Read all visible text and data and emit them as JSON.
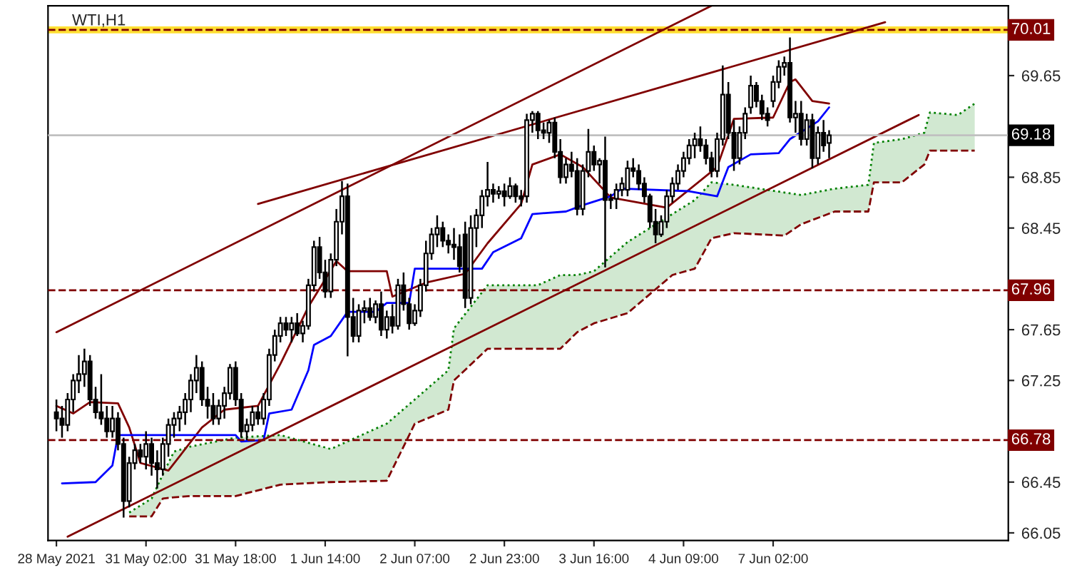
{
  "chart_data": {
    "type": "candlestick",
    "title": "WTI,H1",
    "categories": [
      "28 May 2021",
      null,
      null,
      null,
      null,
      null,
      null,
      null,
      null,
      null,
      null,
      null,
      null,
      null,
      null,
      null,
      "31 May 02:00",
      null,
      null,
      null,
      null,
      null,
      null,
      null,
      null,
      null,
      null,
      null,
      null,
      null,
      null,
      null,
      "31 May 18:00",
      null,
      null,
      null,
      null,
      null,
      null,
      null,
      null,
      null,
      null,
      null,
      null,
      null,
      null,
      null,
      "1 Jun 14:00",
      null,
      null,
      null,
      null,
      null,
      null,
      null,
      null,
      null,
      null,
      null,
      null,
      null,
      null,
      null,
      "2 Jun 07:00",
      null,
      null,
      null,
      null,
      null,
      null,
      null,
      null,
      null,
      null,
      null,
      null,
      null,
      null,
      null,
      "2 Jun 23:00",
      null,
      null,
      null,
      null,
      null,
      null,
      null,
      null,
      null,
      null,
      null,
      null,
      null,
      null,
      null,
      "3 Jun 16:00",
      null,
      null,
      null,
      null,
      null,
      null,
      null,
      null,
      null,
      null,
      null,
      null,
      null,
      null,
      null,
      "4 Jun 09:00",
      null,
      null,
      null,
      null,
      null,
      null,
      null,
      null,
      null,
      null,
      null,
      null,
      null,
      null,
      null,
      "7 Jun 02:00",
      null,
      null,
      null,
      null,
      null,
      null,
      null,
      null,
      null,
      null,
      null,
      null,
      null,
      null,
      null,
      null,
      null,
      null,
      null,
      null,
      null,
      null,
      null,
      null,
      null,
      null,
      null,
      null,
      null,
      null,
      null,
      null,
      null,
      null,
      null,
      null
    ],
    "ohlc": [
      [
        67.0,
        67.1,
        66.85,
        66.95
      ],
      [
        66.95,
        67.05,
        66.8,
        66.9
      ],
      [
        66.9,
        67.15,
        66.85,
        67.1
      ],
      [
        67.1,
        67.3,
        67.0,
        67.25
      ],
      [
        67.25,
        67.45,
        67.15,
        67.3
      ],
      [
        67.3,
        67.5,
        67.2,
        67.4
      ],
      [
        67.4,
        67.45,
        67.05,
        67.1
      ],
      [
        67.1,
        67.2,
        66.95,
        67.0
      ],
      [
        67.0,
        67.3,
        66.9,
        66.95
      ],
      [
        66.95,
        67.05,
        66.8,
        66.85
      ],
      [
        66.85,
        67.05,
        66.8,
        66.95
      ],
      [
        66.95,
        67.0,
        66.7,
        66.75
      ],
      [
        66.75,
        66.8,
        66.17,
        66.3
      ],
      [
        66.3,
        66.65,
        66.25,
        66.6
      ],
      [
        66.6,
        66.75,
        66.55,
        66.7
      ],
      [
        66.7,
        66.75,
        66.6,
        66.65
      ],
      [
        66.65,
        66.85,
        66.55,
        66.75
      ],
      [
        66.75,
        66.8,
        66.5,
        66.6
      ],
      [
        66.6,
        66.7,
        66.4,
        66.55
      ],
      [
        66.55,
        66.8,
        66.5,
        66.75
      ],
      [
        66.75,
        66.95,
        66.65,
        66.9
      ],
      [
        66.9,
        67.0,
        66.8,
        66.95
      ],
      [
        66.95,
        67.05,
        66.85,
        67.0
      ],
      [
        67.0,
        67.15,
        66.9,
        67.1
      ],
      [
        67.1,
        67.3,
        67.0,
        67.25
      ],
      [
        67.25,
        67.45,
        67.15,
        67.35
      ],
      [
        67.35,
        67.4,
        67.05,
        67.1
      ],
      [
        67.1,
        67.2,
        66.95,
        67.05
      ],
      [
        67.05,
        67.15,
        66.9,
        66.95
      ],
      [
        66.95,
        67.1,
        66.9,
        67.05
      ],
      [
        67.05,
        67.2,
        66.95,
        67.15
      ],
      [
        67.15,
        67.38,
        67.1,
        67.35
      ],
      [
        67.35,
        67.4,
        67.05,
        67.1
      ],
      [
        67.1,
        67.15,
        66.8,
        66.85
      ],
      [
        66.85,
        66.95,
        66.78,
        66.9
      ],
      [
        66.9,
        67.05,
        66.85,
        67.0
      ],
      [
        67.0,
        67.05,
        66.9,
        66.95
      ],
      [
        66.95,
        67.15,
        66.9,
        67.1
      ],
      [
        67.1,
        67.5,
        67.05,
        67.45
      ],
      [
        67.45,
        67.65,
        67.4,
        67.6
      ],
      [
        67.6,
        67.75,
        67.55,
        67.7
      ],
      [
        67.7,
        67.75,
        67.6,
        67.65
      ],
      [
        67.65,
        67.75,
        67.55,
        67.7
      ],
      [
        67.7,
        67.78,
        67.6,
        67.62
      ],
      [
        67.62,
        67.72,
        67.55,
        67.68
      ],
      [
        67.68,
        68.05,
        67.65,
        68.0
      ],
      [
        68.0,
        68.35,
        67.95,
        68.3
      ],
      [
        68.3,
        68.38,
        68.05,
        68.1
      ],
      [
        68.1,
        68.2,
        67.9,
        67.95
      ],
      [
        67.95,
        68.25,
        67.9,
        68.2
      ],
      [
        68.2,
        68.6,
        68.15,
        68.5
      ],
      [
        68.5,
        68.82,
        68.4,
        68.7
      ],
      [
        68.7,
        68.8,
        67.44,
        67.75
      ],
      [
        67.75,
        67.9,
        67.55,
        67.6
      ],
      [
        67.6,
        67.85,
        67.55,
        67.8
      ],
      [
        67.8,
        67.88,
        67.7,
        67.82
      ],
      [
        67.82,
        67.9,
        67.72,
        67.75
      ],
      [
        67.75,
        67.88,
        67.7,
        67.85
      ],
      [
        67.85,
        67.95,
        67.6,
        67.65
      ],
      [
        67.65,
        67.8,
        67.58,
        67.75
      ],
      [
        67.75,
        67.85,
        67.62,
        67.68
      ],
      [
        67.68,
        68.05,
        67.65,
        68.0
      ],
      [
        68.0,
        68.1,
        67.8,
        67.85
      ],
      [
        67.85,
        67.9,
        67.65,
        67.7
      ],
      [
        67.7,
        67.85,
        67.68,
        67.8
      ],
      [
        67.8,
        68.05,
        67.75,
        68.0
      ],
      [
        68.0,
        68.35,
        67.95,
        68.25
      ],
      [
        68.25,
        68.45,
        68.2,
        68.4
      ],
      [
        68.4,
        68.55,
        68.3,
        68.45
      ],
      [
        68.45,
        68.5,
        68.3,
        68.35
      ],
      [
        68.35,
        68.4,
        68.25,
        68.32
      ],
      [
        68.32,
        68.45,
        68.2,
        68.3
      ],
      [
        68.3,
        68.4,
        68.1,
        68.15
      ],
      [
        68.4,
        68.5,
        67.82,
        67.9
      ],
      [
        67.9,
        68.55,
        67.85,
        68.45
      ],
      [
        68.45,
        68.6,
        68.3,
        68.55
      ],
      [
        68.55,
        68.75,
        68.45,
        68.7
      ],
      [
        68.7,
        68.97,
        68.62,
        68.75
      ],
      [
        68.75,
        68.8,
        68.65,
        68.72
      ],
      [
        68.72,
        68.78,
        68.68,
        68.74
      ],
      [
        68.74,
        68.8,
        68.62,
        68.7
      ],
      [
        68.7,
        68.85,
        68.68,
        68.78
      ],
      [
        68.78,
        68.8,
        68.65,
        68.7
      ],
      [
        68.7,
        68.75,
        68.62,
        68.68
      ],
      [
        68.7,
        69.35,
        68.65,
        69.3
      ],
      [
        69.3,
        69.37,
        69.2,
        69.35
      ],
      [
        69.35,
        69.37,
        69.15,
        69.22
      ],
      [
        69.22,
        69.28,
        69.15,
        69.2
      ],
      [
        69.2,
        69.3,
        69.12,
        69.28
      ],
      [
        69.28,
        69.32,
        69.0,
        69.05
      ],
      [
        69.05,
        69.15,
        68.8,
        68.85
      ],
      [
        68.85,
        69.0,
        68.8,
        68.95
      ],
      [
        68.95,
        69.05,
        68.85,
        68.9
      ],
      [
        68.9,
        69.0,
        68.55,
        68.6
      ],
      [
        68.6,
        68.95,
        68.55,
        68.9
      ],
      [
        68.9,
        69.23,
        68.85,
        69.05
      ],
      [
        69.05,
        69.1,
        68.9,
        68.95
      ],
      [
        68.95,
        69.0,
        68.8,
        68.98
      ],
      [
        68.98,
        69.17,
        68.14,
        68.67
      ],
      [
        68.67,
        68.72,
        68.6,
        68.68
      ],
      [
        68.68,
        68.8,
        68.6,
        68.75
      ],
      [
        68.75,
        68.85,
        68.7,
        68.8
      ],
      [
        68.75,
        68.98,
        68.7,
        68.92
      ],
      [
        68.92,
        69.0,
        68.85,
        68.9
      ],
      [
        68.9,
        68.95,
        68.75,
        68.8
      ],
      [
        68.8,
        68.85,
        68.65,
        68.7
      ],
      [
        68.7,
        68.72,
        68.45,
        68.5
      ],
      [
        68.5,
        68.6,
        68.33,
        68.4
      ],
      [
        68.4,
        68.55,
        68.38,
        68.5
      ],
      [
        68.5,
        68.75,
        68.45,
        68.7
      ],
      [
        68.7,
        68.85,
        68.65,
        68.8
      ],
      [
        68.8,
        68.95,
        68.75,
        68.9
      ],
      [
        68.9,
        69.05,
        68.85,
        69.0
      ],
      [
        69.0,
        69.15,
        68.95,
        69.1
      ],
      [
        69.1,
        69.2,
        69.0,
        69.15
      ],
      [
        69.15,
        69.25,
        69.05,
        69.1
      ],
      [
        69.1,
        69.15,
        68.95,
        69.0
      ],
      [
        69.0,
        69.05,
        68.85,
        68.9
      ],
      [
        68.9,
        69.2,
        68.85,
        69.15
      ],
      [
        69.15,
        69.73,
        69.1,
        69.5
      ],
      [
        69.5,
        69.6,
        69.15,
        69.2
      ],
      [
        69.2,
        69.3,
        68.9,
        69.0
      ],
      [
        69.0,
        69.25,
        68.95,
        69.2
      ],
      [
        69.2,
        69.4,
        69.15,
        69.35
      ],
      [
        69.4,
        69.65,
        69.35,
        69.57
      ],
      [
        69.57,
        69.6,
        69.4,
        69.45
      ],
      [
        69.45,
        69.5,
        69.3,
        69.35
      ],
      [
        69.35,
        69.4,
        69.25,
        69.3
      ],
      [
        69.45,
        69.65,
        69.4,
        69.6
      ],
      [
        69.6,
        69.77,
        69.55,
        69.72
      ],
      [
        69.72,
        69.8,
        69.65,
        69.75
      ],
      [
        69.75,
        69.95,
        69.28,
        69.32
      ],
      [
        69.32,
        69.45,
        69.2,
        69.35
      ],
      [
        69.35,
        69.45,
        69.1,
        69.15
      ],
      [
        69.15,
        69.35,
        69.1,
        69.3
      ],
      [
        69.3,
        69.35,
        68.92,
        69.0
      ],
      [
        69.0,
        69.25,
        68.95,
        69.2
      ],
      [
        69.2,
        69.3,
        69.05,
        69.1
      ],
      [
        69.12,
        69.22,
        69.0,
        69.18
      ],
      null,
      null,
      null,
      null,
      null,
      null,
      null,
      null,
      null,
      null,
      null,
      null,
      null,
      null,
      null,
      null,
      null,
      null,
      null,
      null,
      null,
      null,
      null,
      null,
      null,
      null
    ],
    "series": [
      {
        "type": "area",
        "color": "#008000",
        "values": [
          null,
          null,
          null,
          null,
          null,
          null,
          null,
          null,
          null,
          null,
          null,
          null,
          null,
          66.21,
          null,
          null,
          null,
          66.32,
          null,
          66.51,
          null,
          66.69,
          null,
          null,
          66.73,
          null,
          null,
          null,
          null,
          null,
          null,
          null,
          66.8,
          null,
          null,
          null,
          null,
          null,
          null,
          null,
          66.82,
          null,
          null,
          null,
          null,
          null,
          null,
          null,
          null,
          66.71,
          null,
          null,
          null,
          null,
          null,
          null,
          null,
          null,
          null,
          66.91,
          null,
          null,
          null,
          null,
          67.1,
          null,
          null,
          null,
          null,
          null,
          67.33,
          67.66,
          null,
          null,
          null,
          null,
          null,
          68.0,
          null,
          null,
          null,
          null,
          null,
          null,
          null,
          null,
          68.0,
          null,
          null,
          null,
          68.08,
          null,
          null,
          68.08,
          null,
          null,
          68.11,
          null,
          null,
          null,
          null,
          null,
          68.34,
          null,
          null,
          null,
          null,
          null,
          null,
          null,
          68.56,
          null,
          null,
          null,
          68.67,
          null,
          null,
          68.81,
          null,
          null,
          null,
          68.79,
          null,
          null,
          null,
          null,
          null,
          null,
          null,
          null,
          68.73,
          null,
          null,
          68.71,
          null,
          null,
          null,
          null,
          null,
          68.76,
          null,
          null,
          null,
          null,
          null,
          68.79,
          69.12,
          null,
          null,
          null,
          null,
          69.15,
          null,
          null,
          null,
          69.2,
          69.36,
          null,
          null,
          null,
          null,
          69.34,
          null,
          null,
          69.43
        ]
      },
      {
        "type": "line",
        "color": "#800000",
        "values": [
          67.05,
          null,
          null,
          66.99,
          null,
          null,
          67.08,
          null,
          null,
          null,
          null,
          67.07,
          null,
          66.88,
          null,
          66.6,
          null,
          null,
          null,
          null,
          66.54,
          null,
          null,
          66.71,
          null,
          null,
          66.88,
          null,
          null,
          null,
          67.02,
          null,
          null,
          null,
          null,
          null,
          67.05,
          null,
          null,
          null,
          67.38,
          null,
          null,
          null,
          null,
          67.83,
          null,
          null,
          null,
          null,
          68.19,
          null,
          68.11,
          null,
          null,
          null,
          null,
          null,
          null,
          68.11,
          67.91,
          null,
          null,
          null,
          null,
          null,
          68.02,
          null,
          null,
          null,
          null,
          null,
          null,
          68.09,
          null,
          null,
          null,
          68.33,
          null,
          null,
          null,
          null,
          null,
          68.64,
          null,
          68.95,
          null,
          null,
          null,
          null,
          69.03,
          null,
          null,
          null,
          68.93,
          null,
          null,
          null,
          null,
          68.69,
          null,
          null,
          null,
          null,
          null,
          null,
          null,
          null,
          null,
          68.61,
          null,
          null,
          null,
          null,
          null,
          null,
          null,
          null,
          68.93,
          null,
          null,
          69.31,
          null,
          null,
          null,
          null,
          null,
          null,
          69.32,
          null,
          null,
          69.6,
          69.62,
          null,
          null,
          69.45,
          null,
          null,
          69.43,
          null,
          null,
          null,
          null,
          null,
          null,
          null,
          null,
          null,
          null,
          null,
          null,
          null,
          null,
          null,
          null,
          null,
          null,
          null,
          null,
          null,
          null,
          null,
          null,
          null,
          null
        ]
      },
      {
        "type": "line",
        "color": "#800000",
        "line_style": "dashed",
        "values": [
          null,
          null,
          null,
          null,
          null,
          null,
          null,
          null,
          null,
          null,
          null,
          null,
          null,
          66.18,
          null,
          null,
          null,
          66.18,
          null,
          66.32,
          null,
          66.33,
          null,
          null,
          66.34,
          null,
          null,
          null,
          null,
          null,
          null,
          null,
          66.34,
          null,
          null,
          null,
          null,
          null,
          null,
          null,
          66.43,
          null,
          null,
          null,
          null,
          null,
          null,
          null,
          null,
          66.45,
          null,
          null,
          null,
          null,
          null,
          null,
          null,
          null,
          null,
          66.46,
          null,
          null,
          null,
          null,
          66.91,
          null,
          null,
          null,
          null,
          null,
          67.02,
          67.25,
          null,
          null,
          null,
          null,
          null,
          67.5,
          null,
          null,
          null,
          null,
          null,
          null,
          null,
          null,
          67.5,
          null,
          null,
          null,
          67.5,
          null,
          null,
          67.63,
          null,
          null,
          67.7,
          null,
          null,
          null,
          null,
          null,
          67.78,
          null,
          null,
          null,
          null,
          null,
          null,
          null,
          68.08,
          null,
          null,
          null,
          68.13,
          null,
          null,
          68.37,
          null,
          null,
          null,
          68.41,
          null,
          null,
          null,
          null,
          null,
          null,
          null,
          null,
          68.39,
          null,
          null,
          68.48,
          null,
          null,
          null,
          null,
          null,
          68.58,
          null,
          null,
          null,
          null,
          null,
          68.58,
          68.81,
          null,
          null,
          null,
          null,
          68.81,
          null,
          null,
          null,
          68.95,
          69.06,
          null,
          null,
          null,
          null,
          69.06,
          null,
          null,
          69.06
        ]
      },
      {
        "type": "line",
        "color": "#0000ff",
        "values": [
          null,
          66.44,
          null,
          null,
          null,
          null,
          null,
          66.45,
          null,
          null,
          66.58,
          66.82,
          null,
          null,
          null,
          null,
          null,
          null,
          null,
          null,
          null,
          null,
          null,
          null,
          null,
          null,
          null,
          null,
          null,
          null,
          null,
          null,
          66.82,
          66.77,
          null,
          null,
          null,
          66.78,
          66.99,
          null,
          null,
          null,
          67.02,
          null,
          null,
          67.33,
          67.53,
          null,
          null,
          67.6,
          null,
          null,
          67.79,
          null,
          null,
          null,
          null,
          67.79,
          null,
          67.86,
          null,
          null,
          null,
          67.86,
          68.13,
          null,
          null,
          null,
          null,
          null,
          null,
          null,
          null,
          null,
          null,
          null,
          68.13,
          null,
          68.26,
          null,
          null,
          null,
          null,
          68.37,
          null,
          68.56,
          null,
          null,
          null,
          null,
          null,
          68.58,
          null,
          null,
          68.63,
          null,
          null,
          null,
          null,
          68.7,
          null,
          68.76,
          null,
          null,
          null,
          null,
          null,
          null,
          null,
          null,
          null,
          null,
          null,
          68.74,
          null,
          null,
          null,
          null,
          68.7,
          null,
          68.93,
          null,
          null,
          null,
          69.03,
          null,
          null,
          null,
          null,
          69.04,
          null,
          69.15,
          null,
          null,
          null,
          null,
          69.29,
          null,
          69.4,
          null,
          null,
          null,
          null,
          null,
          null,
          null,
          null,
          null,
          null,
          null,
          null,
          null,
          null,
          null,
          null,
          null,
          null,
          null,
          null,
          null,
          null,
          null,
          null,
          null,
          null
        ]
      },
      {
        "type": "line",
        "color": "#800000",
        "values": [
          67.63,
          null,
          null,
          null,
          null,
          null,
          null,
          null,
          null,
          null,
          null,
          null,
          null,
          null,
          null,
          null,
          null,
          null,
          null,
          null,
          null,
          null,
          null,
          null,
          null,
          null,
          null,
          null,
          null,
          null,
          null,
          null,
          null,
          null,
          null,
          null,
          null,
          null,
          null,
          null,
          null,
          null,
          null,
          null,
          null,
          null,
          null,
          null,
          null,
          null,
          null,
          null,
          null,
          null,
          null,
          null,
          null,
          null,
          null,
          null,
          null,
          null,
          null,
          null,
          null,
          null,
          null,
          null,
          null,
          null,
          null,
          null,
          null,
          null,
          null,
          null,
          null,
          null,
          null,
          null,
          null,
          null,
          null,
          null,
          null,
          null,
          null,
          null,
          null,
          null,
          null,
          null,
          null,
          null,
          null,
          null,
          null,
          null,
          null,
          null,
          null,
          null,
          null,
          null,
          null,
          null,
          null,
          null,
          null,
          null,
          null,
          null,
          null,
          null,
          null,
          null,
          null,
          70.2,
          null,
          null,
          null,
          null,
          null,
          null,
          null,
          null,
          null,
          null,
          null,
          null,
          null,
          null,
          null,
          null,
          null,
          null,
          null,
          null,
          null,
          null,
          null,
          null,
          null,
          null,
          null,
          null,
          null,
          null,
          null,
          null,
          null,
          null,
          null,
          null,
          null,
          null,
          null,
          null,
          null,
          null,
          null,
          null,
          null,
          null,
          null
        ]
      },
      {
        "type": "line",
        "color": "#800000",
        "values": [
          null,
          null,
          null,
          null,
          null,
          null,
          null,
          null,
          null,
          null,
          null,
          null,
          null,
          null,
          null,
          null,
          null,
          null,
          null,
          null,
          null,
          null,
          null,
          null,
          null,
          null,
          null,
          null,
          null,
          null,
          null,
          null,
          null,
          null,
          null,
          null,
          68.64,
          null,
          null,
          null,
          null,
          null,
          null,
          null,
          null,
          null,
          null,
          null,
          null,
          null,
          null,
          null,
          null,
          null,
          null,
          null,
          null,
          null,
          null,
          null,
          null,
          null,
          null,
          null,
          null,
          null,
          null,
          null,
          null,
          null,
          null,
          null,
          null,
          null,
          null,
          null,
          null,
          null,
          null,
          null,
          null,
          null,
          null,
          null,
          null,
          null,
          null,
          null,
          null,
          null,
          null,
          null,
          null,
          null,
          null,
          null,
          null,
          null,
          null,
          null,
          null,
          null,
          null,
          null,
          null,
          null,
          null,
          null,
          null,
          null,
          null,
          null,
          null,
          null,
          null,
          null,
          null,
          null,
          null,
          null,
          null,
          null,
          null,
          null,
          null,
          null,
          null,
          null,
          null,
          null,
          null,
          null,
          null,
          null,
          null,
          null,
          null,
          null,
          null,
          null,
          null,
          null,
          null,
          null,
          null,
          null,
          null,
          null,
          70.07,
          null,
          null,
          null,
          null,
          null,
          null,
          null,
          null,
          null,
          null,
          null,
          null,
          null,
          null,
          null,
          null
        ]
      },
      {
        "type": "line",
        "color": "#800000",
        "values": [
          null,
          null,
          66.02,
          null,
          null,
          null,
          null,
          null,
          null,
          null,
          null,
          null,
          null,
          null,
          null,
          null,
          null,
          null,
          null,
          null,
          null,
          null,
          null,
          null,
          null,
          null,
          null,
          null,
          null,
          null,
          null,
          null,
          null,
          null,
          null,
          null,
          null,
          null,
          null,
          null,
          null,
          null,
          null,
          null,
          null,
          null,
          null,
          null,
          null,
          null,
          null,
          null,
          null,
          null,
          null,
          null,
          null,
          null,
          null,
          null,
          null,
          null,
          null,
          null,
          null,
          null,
          null,
          null,
          null,
          null,
          null,
          null,
          null,
          null,
          null,
          null,
          null,
          null,
          null,
          null,
          null,
          null,
          null,
          null,
          null,
          null,
          null,
          null,
          null,
          null,
          null,
          null,
          null,
          null,
          null,
          null,
          null,
          null,
          null,
          null,
          null,
          null,
          null,
          null,
          null,
          null,
          null,
          null,
          null,
          null,
          null,
          null,
          null,
          null,
          null,
          null,
          null,
          null,
          null,
          null,
          null,
          null,
          null,
          null,
          null,
          null,
          null,
          null,
          null,
          null,
          null,
          null,
          null,
          null,
          null,
          null,
          null,
          null,
          null,
          null,
          null,
          null,
          null,
          null,
          null,
          null,
          null,
          null,
          null,
          null,
          null,
          null,
          null,
          null,
          69.34,
          null,
          null,
          null,
          null,
          null,
          null,
          null,
          null,
          null,
          null
        ]
      }
    ],
    "ref_lines": [
      {
        "axis": "y",
        "value": 70.01,
        "label": "70.01",
        "color": "#800000",
        "line_style": "dashed"
      },
      {
        "axis": "y",
        "value": 69.18,
        "label": "69.18",
        "color": "#c0c0c0",
        "line_style": "solid"
      },
      {
        "axis": "y",
        "value": 67.96,
        "label": "67.96",
        "color": "#800000",
        "line_style": "dashed"
      },
      {
        "axis": "y",
        "value": 66.78,
        "label": "66.78",
        "color": "#800000",
        "line_style": "dashed"
      }
    ],
    "bands": [
      {
        "axis": "y",
        "from": 69.99,
        "to": 70.03,
        "color": "#ffd700"
      }
    ],
    "ylim": [
      65.99,
      70.2
    ],
    "yticks": [
      66.05,
      66.45,
      67.25,
      67.65,
      68.45,
      68.85,
      69.65
    ],
    "grid": false,
    "legend": false
  }
}
